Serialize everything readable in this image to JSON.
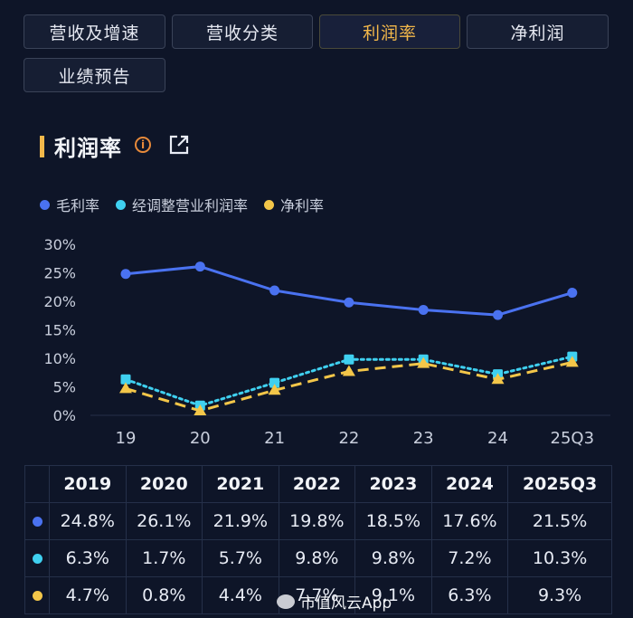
{
  "tabs": [
    {
      "label": "营收及增速",
      "active": false
    },
    {
      "label": "营收分类",
      "active": false
    },
    {
      "label": "利润率",
      "active": true
    },
    {
      "label": "净利润",
      "active": false
    },
    {
      "label": "业绩预告",
      "active": false
    }
  ],
  "section": {
    "title": "利润率",
    "info_icon": "info-circle-icon",
    "share_icon": "external-link-icon"
  },
  "colors": {
    "accent": "#f3b84a",
    "gross": "#4a72f0",
    "adjusted": "#3fd0f0",
    "net": "#f3c649"
  },
  "legend": [
    {
      "label": "毛利率",
      "color": "#4a72f0"
    },
    {
      "label": "经调整营业利润率",
      "color": "#3fd0f0"
    },
    {
      "label": "净利率",
      "color": "#f3c649"
    }
  ],
  "chart_data": {
    "type": "line",
    "categories": [
      "19",
      "20",
      "21",
      "22",
      "23",
      "24",
      "25Q3"
    ],
    "yticks": [
      "30%",
      "25%",
      "20%",
      "15%",
      "10%",
      "5%",
      "0%"
    ],
    "ylim": [
      0,
      30
    ],
    "series": [
      {
        "name": "毛利率",
        "values": [
          24.8,
          26.1,
          21.9,
          19.8,
          18.5,
          17.6,
          21.5
        ],
        "style": "solid",
        "marker": "circle",
        "color": "#4a72f0"
      },
      {
        "name": "经调整营业利润率",
        "values": [
          6.3,
          1.7,
          5.7,
          9.8,
          9.8,
          7.2,
          10.3
        ],
        "style": "dotted",
        "marker": "square",
        "color": "#3fd0f0"
      },
      {
        "name": "净利率",
        "values": [
          4.7,
          0.8,
          4.4,
          7.7,
          9.1,
          6.3,
          9.3
        ],
        "style": "dashed",
        "marker": "triangle",
        "color": "#f3c649"
      }
    ]
  },
  "table": {
    "headers": [
      "2019",
      "2020",
      "2021",
      "2022",
      "2023",
      "2024",
      "2025Q3"
    ],
    "rows": [
      {
        "color": "#4a72f0",
        "cells": [
          "24.8%",
          "26.1%",
          "21.9%",
          "19.8%",
          "18.5%",
          "17.6%",
          "21.5%"
        ]
      },
      {
        "color": "#3fd0f0",
        "cells": [
          "6.3%",
          "1.7%",
          "5.7%",
          "9.8%",
          "9.8%",
          "7.2%",
          "10.3%"
        ]
      },
      {
        "color": "#f3c649",
        "cells": [
          "4.7%",
          "0.8%",
          "4.4%",
          "7.7%",
          "9.1%",
          "6.3%",
          "9.3%"
        ]
      }
    ]
  },
  "watermark": {
    "text": "市值风云App",
    "icon": "weibo-icon"
  }
}
